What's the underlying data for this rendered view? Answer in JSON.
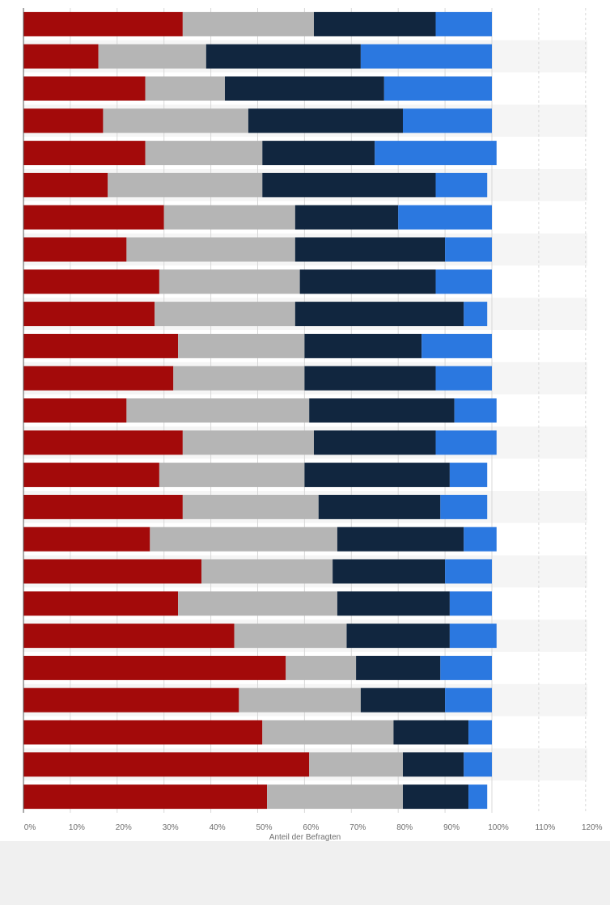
{
  "chart_data": {
    "type": "bar",
    "orientation": "horizontal",
    "stacked": true,
    "xlabel": "Anteil der Befragten",
    "x_ticks": [
      "0%",
      "10%",
      "20%",
      "30%",
      "40%",
      "50%",
      "60%",
      "70%",
      "80%",
      "90%",
      "100%",
      "110%",
      "120%"
    ],
    "xlim": [
      0,
      120
    ],
    "grid": true,
    "legend": "none",
    "colors": [
      "#a30a0a",
      "#b5b5b5",
      "#11263f",
      "#2b78e0"
    ],
    "series": [
      {
        "values": [
          34,
          16,
          26,
          17,
          26,
          18,
          30,
          22,
          29,
          28,
          33,
          32,
          22,
          34,
          29,
          34,
          27,
          38,
          33,
          45,
          56,
          46,
          51,
          61,
          52
        ]
      },
      {
        "values": [
          28,
          23,
          17,
          31,
          25,
          33,
          28,
          36,
          30,
          30,
          27,
          28,
          39,
          28,
          31,
          29,
          40,
          28,
          34,
          24,
          15,
          26,
          28,
          20,
          29
        ]
      },
      {
        "values": [
          26,
          33,
          34,
          33,
          24,
          37,
          22,
          32,
          29,
          36,
          25,
          28,
          31,
          26,
          31,
          26,
          27,
          24,
          24,
          22,
          18,
          18,
          16,
          13,
          14
        ]
      },
      {
        "values": [
          12,
          28,
          23,
          19,
          26,
          11,
          20,
          10,
          12,
          5,
          15,
          12,
          9,
          13,
          8,
          10,
          7,
          10,
          9,
          10,
          11,
          10,
          5,
          6,
          4
        ]
      }
    ]
  }
}
